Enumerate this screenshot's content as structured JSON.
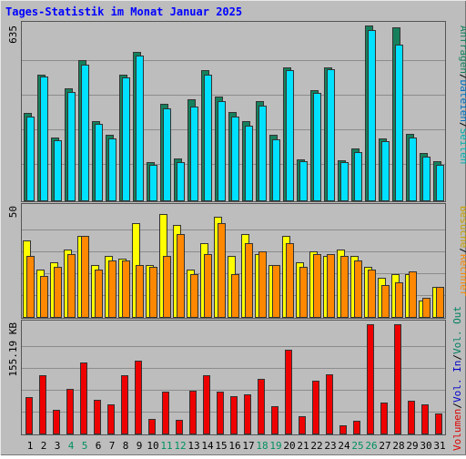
{
  "title": "Tages-Statistik im Monat Januar 2025",
  "colors": {
    "title": "#0000ff",
    "background": "#bdbdbd",
    "hits": "#16805c",
    "files": "#00e0ff",
    "pages": "#00c8c8",
    "visits": "#ffff00",
    "sites": "#ff8800",
    "kbytes": "#ee0000",
    "weekend": "#009060",
    "weekday": "#000000"
  },
  "labels": {
    "top_scale": "635",
    "mid_scale": "50",
    "bottom_scale": "155.19 KB",
    "right_top": [
      "Anfragen",
      "/",
      "Dateien",
      "/",
      "Seiten"
    ],
    "right_mid": [
      "Besuche",
      "/",
      "Rechner"
    ],
    "right_bottom": [
      "Volumen",
      "/",
      "Vol. In",
      "/",
      "Vol. Out"
    ]
  },
  "chart_data": [
    {
      "type": "bar",
      "name": "requests-files",
      "categories": [
        "1",
        "2",
        "3",
        "4",
        "5",
        "6",
        "7",
        "8",
        "9",
        "10",
        "11",
        "12",
        "13",
        "14",
        "15",
        "16",
        "17",
        "18",
        "19",
        "20",
        "21",
        "22",
        "23",
        "24",
        "25",
        "26",
        "27",
        "28",
        "29",
        "30",
        "31"
      ],
      "weekend_days": [
        "4",
        "5",
        "11",
        "12",
        "18",
        "19",
        "25",
        "26"
      ],
      "ylim": [
        0,
        635
      ],
      "series": [
        {
          "name": "Anfragen",
          "values": [
            320,
            458,
            231,
            408,
            510,
            291,
            241,
            458,
            540,
            140,
            352,
            156,
            367,
            473,
            378,
            321,
            291,
            363,
            241,
            485,
            152,
            403,
            485,
            147,
            192,
            635,
            227,
            628,
            244,
            175,
            145
          ]
        },
        {
          "name": "Dateien",
          "values": [
            306,
            450,
            221,
            396,
            495,
            281,
            226,
            446,
            525,
            131,
            335,
            141,
            343,
            458,
            361,
            306,
            273,
            345,
            224,
            474,
            145,
            392,
            476,
            141,
            177,
            620,
            217,
            565,
            229,
            161,
            130
          ]
        }
      ]
    },
    {
      "type": "bar",
      "name": "visits-sites",
      "categories": [
        "1",
        "2",
        "3",
        "4",
        "5",
        "6",
        "7",
        "8",
        "9",
        "10",
        "11",
        "12",
        "13",
        "14",
        "15",
        "16",
        "17",
        "18",
        "19",
        "20",
        "21",
        "22",
        "23",
        "24",
        "25",
        "26",
        "27",
        "28",
        "29",
        "30",
        "31"
      ],
      "ylim": [
        0,
        50
      ],
      "series": [
        {
          "name": "Besuche",
          "values": [
            35,
            22,
            25,
            31,
            37,
            24,
            28,
            27,
            43,
            24,
            47,
            42,
            22,
            34,
            46,
            28,
            38,
            29,
            24,
            37,
            25,
            30,
            28,
            31,
            28,
            23,
            18,
            20,
            20,
            8,
            14
          ]
        },
        {
          "name": "Rechner",
          "values": [
            28,
            19,
            23,
            29,
            37,
            22,
            26,
            26,
            24,
            23,
            28,
            38,
            20,
            29,
            43,
            20,
            34,
            30,
            24,
            34,
            23,
            29,
            29,
            28,
            26,
            22,
            15,
            16,
            21,
            9,
            14
          ]
        }
      ]
    },
    {
      "type": "bar",
      "name": "volume",
      "categories": [
        "1",
        "2",
        "3",
        "4",
        "5",
        "6",
        "7",
        "8",
        "9",
        "10",
        "11",
        "12",
        "13",
        "14",
        "15",
        "16",
        "17",
        "18",
        "19",
        "20",
        "21",
        "22",
        "23",
        "24",
        "25",
        "26",
        "27",
        "28",
        "29",
        "30",
        "31"
      ],
      "ylim": [
        0,
        155.19
      ],
      "unit": "KB",
      "series": [
        {
          "name": "Volumen",
          "values": [
            53,
            83,
            35,
            64,
            101,
            49,
            42,
            83,
            104,
            22,
            60,
            21,
            62,
            84,
            60,
            54,
            57,
            78,
            40,
            119,
            26,
            76,
            85,
            13,
            19,
            155,
            45,
            155,
            48,
            42,
            30
          ]
        }
      ]
    }
  ]
}
